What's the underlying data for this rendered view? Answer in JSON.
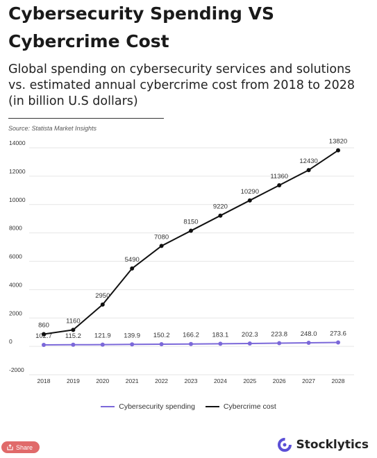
{
  "header": {
    "title": "Cybersecurity Spending VS Cybercrime Cost",
    "subtitle": "Global spending on cybersecurity services and solutions vs. estimated annual cybercrime cost from 2018 to 2028 (in billion U.S dollars)",
    "source": "Source: Statista Market Insights"
  },
  "chart_data": {
    "type": "line",
    "x": [
      "2018",
      "2019",
      "2020",
      "2021",
      "2022",
      "2023",
      "2024",
      "2025",
      "2026",
      "2027",
      "2028"
    ],
    "ylim": [
      -2000,
      14000
    ],
    "yticks": [
      14000,
      12000,
      10000,
      8000,
      6000,
      4000,
      2000,
      0,
      -2000
    ],
    "grid": true,
    "legend_position": "bottom",
    "series": [
      {
        "name": "Cybersecurity spending",
        "color": "#7b68d9",
        "values": [
          102.7,
          115.2,
          121.9,
          139.9,
          150.2,
          166.2,
          183.1,
          202.3,
          223.8,
          248.0,
          273.6
        ],
        "labels": [
          "102.7",
          "115.2",
          "121.9",
          "139.9",
          "150.2",
          "166.2",
          "183.1",
          "202.3",
          "223.8",
          "248.0",
          "273.6"
        ]
      },
      {
        "name": "Cybercrime cost",
        "color": "#111111",
        "values": [
          860,
          1160,
          2950,
          5490,
          7080,
          8150,
          9220,
          10290,
          11360,
          12430,
          13820
        ],
        "labels": [
          "860",
          "1160",
          "2950",
          "5490",
          "7080",
          "8150",
          "9220",
          "10290",
          "11360",
          "12430",
          "13820"
        ]
      }
    ]
  },
  "footer": {
    "share_label": "Share",
    "brand_name": "Stocklytics",
    "share_icon": "share-icon",
    "brand_icon": "stocklytics-logo-icon"
  }
}
